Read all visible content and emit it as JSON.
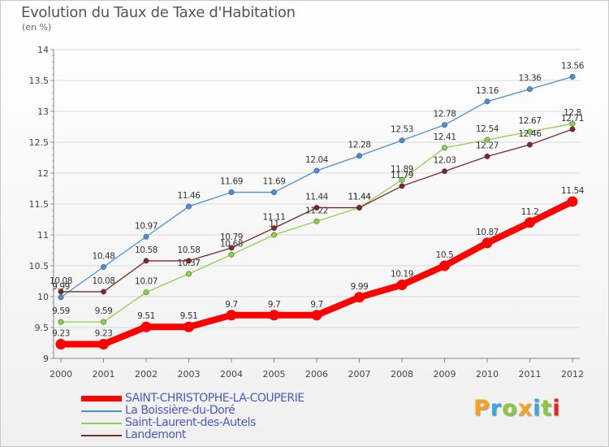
{
  "title": "Evolution du Taux de Taxe d'Habitation",
  "subtitle": "(en %)",
  "logo": {
    "text": "Proxiti",
    "colors": [
      "#f7a320",
      "#3aa7de",
      "#8dc63f",
      "#f7a320",
      "#3aa7de",
      "#8dc63f",
      "#ec2027"
    ]
  },
  "chart_data": {
    "type": "line",
    "title": "Evolution du Taux de Taxe d'Habitation",
    "ylabel": "(en %)",
    "xlabel": "",
    "x": [
      "2000",
      "2001",
      "2002",
      "2003",
      "2004",
      "2005",
      "2006",
      "2007",
      "2008",
      "2009",
      "2010",
      "2011",
      "2012"
    ],
    "ylim": [
      9,
      14
    ],
    "yticks": [
      "9",
      "9.5",
      "10",
      "10.5",
      "11",
      "11.5",
      "12",
      "12.5",
      "13",
      "13.5",
      "14"
    ],
    "grid": "horizontal",
    "legend_position": "bottom-left",
    "series": [
      {
        "name": "SAINT-CHRISTOPHE-LA-COUPERIE",
        "color": "#ff0000",
        "thick": true,
        "values": [
          9.23,
          9.23,
          9.51,
          9.51,
          9.7,
          9.7,
          9.7,
          9.99,
          10.19,
          10.5,
          10.87,
          11.2,
          11.54
        ],
        "labels": [
          "9.23",
          "9.23",
          "9.51",
          "9.51",
          "9.7",
          "9.7",
          "9.7",
          "9.99",
          "10.19",
          "10.5",
          "10.87",
          "11.2",
          "11.54"
        ]
      },
      {
        "name": "La Boissière-du-Doré",
        "color": "#4a90d9",
        "thick": false,
        "values": [
          9.99,
          10.48,
          10.97,
          11.46,
          11.69,
          11.69,
          12.04,
          12.28,
          12.53,
          12.78,
          13.16,
          13.36,
          13.56
        ],
        "labels": [
          "9.99",
          "10.48",
          "10.97",
          "11.46",
          "11.69",
          "11.69",
          "12.04",
          "12.28",
          "12.53",
          "12.78",
          "13.16",
          "13.36",
          "13.56"
        ]
      },
      {
        "name": "Saint-Laurent-des-Autels",
        "color": "#8dd04a",
        "thick": false,
        "values": [
          9.59,
          9.59,
          10.07,
          10.37,
          10.68,
          11.0,
          11.22,
          11.44,
          11.89,
          12.41,
          12.54,
          12.67,
          12.8
        ],
        "labels": [
          "9.59",
          "9.59",
          "10.07",
          "10.37",
          "10.68",
          "11",
          "11.22",
          "11.44",
          "11.89",
          "12.41",
          "12.54",
          "12.67",
          "12.8"
        ]
      },
      {
        "name": "Landemont",
        "color": "#7a2a2a",
        "thick": false,
        "values": [
          10.08,
          10.08,
          10.58,
          10.58,
          10.79,
          11.11,
          11.44,
          11.44,
          11.79,
          12.03,
          12.27,
          12.46,
          12.71
        ],
        "labels": [
          "10.08",
          "10.08",
          "10.58",
          "10.58",
          "10.79",
          "11.11",
          "11.44",
          "11.44",
          "11.79",
          "12.03",
          "12.27",
          "12.46",
          "12.71"
        ]
      }
    ]
  }
}
